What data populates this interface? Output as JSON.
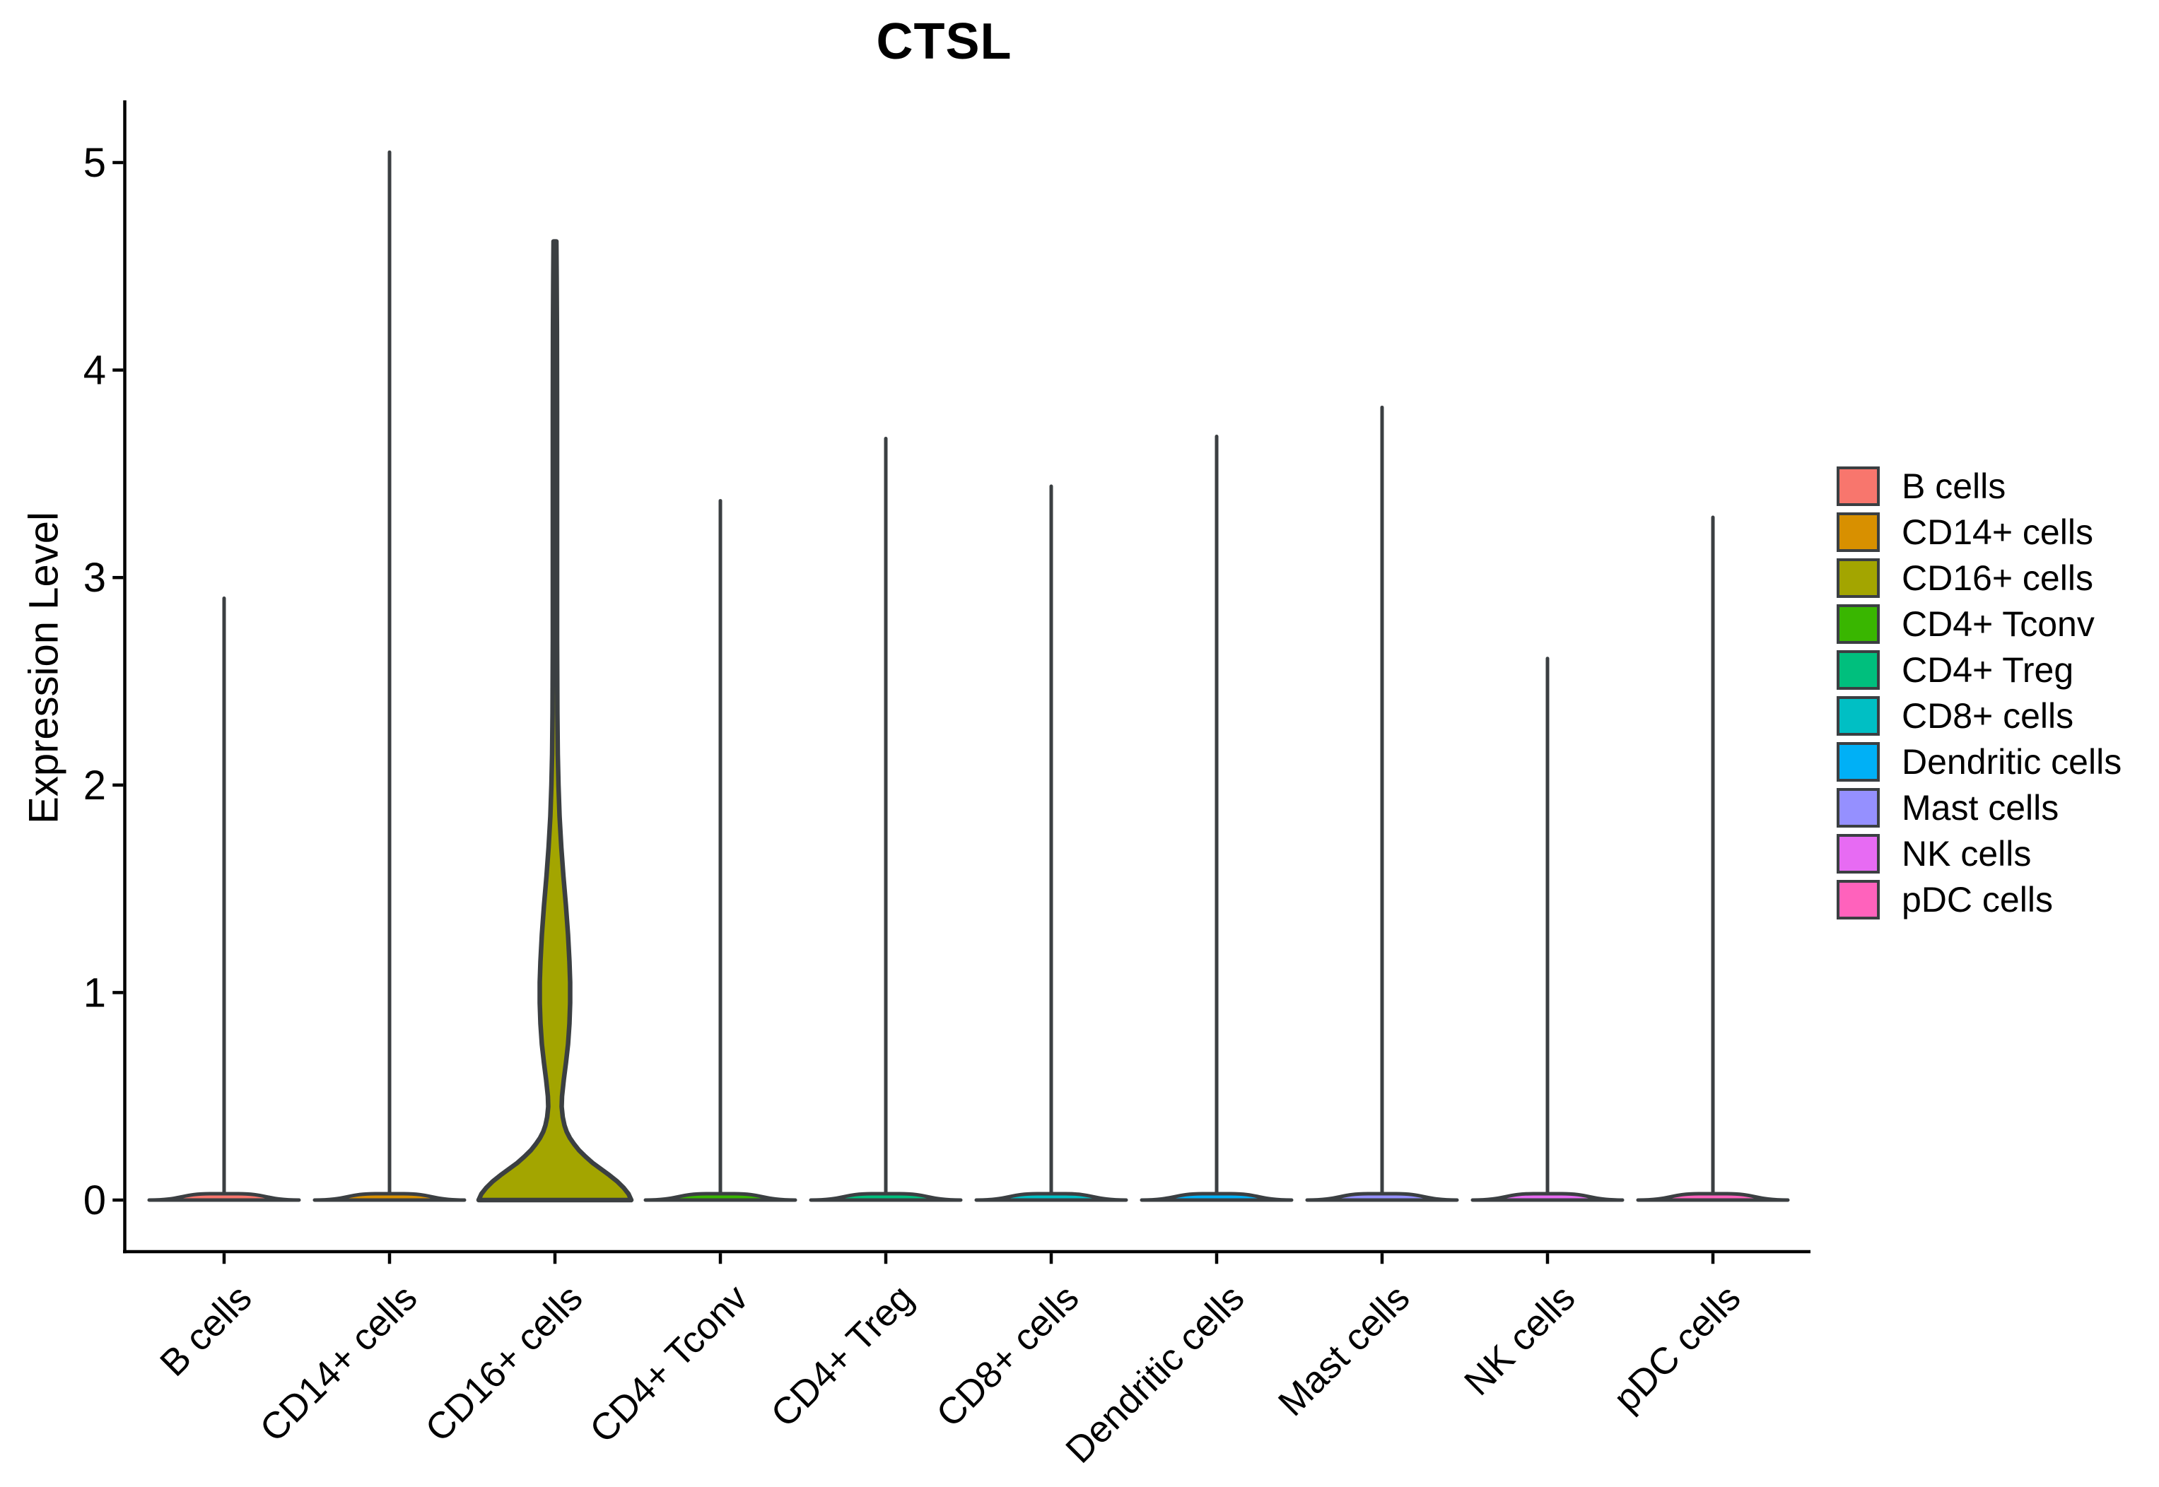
{
  "chart_data": {
    "type": "violin",
    "title": "CTSL",
    "ylabel": "Expression Level",
    "xlabel": "",
    "ylim": [
      0,
      5.3
    ],
    "yticks": [
      0,
      1,
      2,
      3,
      4,
      5
    ],
    "grid": false,
    "legend_position": "right",
    "background_color": "#FFFFFF",
    "axis_color": "#000000",
    "outline_color": "#3B3F42",
    "text_color": "#000000",
    "categories": [
      "B cells",
      "CD14+ cells",
      "CD16+ cells",
      "CD4+ Tconv",
      "CD4+ Treg",
      "CD8+ cells",
      "Dendritic cells",
      "Mast cells",
      "NK cells",
      "pDC cells"
    ],
    "series": [
      {
        "name": "B cells",
        "color": "#F8766D",
        "max": 2.9
      },
      {
        "name": "CD14+ cells",
        "color": "#D89000",
        "max": 5.05
      },
      {
        "name": "CD16+ cells",
        "color": "#A3A500",
        "max": 4.62,
        "profile": [
          [
            0.0,
            108
          ],
          [
            0.03,
            104
          ],
          [
            0.06,
            97
          ],
          [
            0.09,
            88
          ],
          [
            0.12,
            77
          ],
          [
            0.15,
            65
          ],
          [
            0.18,
            53
          ],
          [
            0.21,
            43
          ],
          [
            0.24,
            34
          ],
          [
            0.27,
            27
          ],
          [
            0.3,
            21
          ],
          [
            0.33,
            16.5
          ],
          [
            0.36,
            13.5
          ],
          [
            0.4,
            11
          ],
          [
            0.45,
            9.5
          ],
          [
            0.5,
            10
          ],
          [
            0.58,
            12.5
          ],
          [
            0.66,
            15.5
          ],
          [
            0.75,
            18.5
          ],
          [
            0.85,
            20.5
          ],
          [
            0.95,
            21.5
          ],
          [
            1.05,
            21.5
          ],
          [
            1.15,
            20.5
          ],
          [
            1.28,
            18.5
          ],
          [
            1.42,
            15.5
          ],
          [
            1.56,
            12
          ],
          [
            1.7,
            9
          ],
          [
            1.85,
            6.5
          ],
          [
            2.0,
            5
          ],
          [
            2.15,
            4
          ],
          [
            2.35,
            3.4
          ],
          [
            2.7,
            3
          ],
          [
            3.2,
            3
          ],
          [
            3.8,
            3
          ],
          [
            4.2,
            2.8
          ],
          [
            4.45,
            2.4
          ],
          [
            4.62,
            2
          ]
        ]
      },
      {
        "name": "CD4+ Tconv",
        "color": "#39B600",
        "max": 3.37
      },
      {
        "name": "CD4+ Treg",
        "color": "#00BF7D",
        "max": 3.67
      },
      {
        "name": "CD8+ cells",
        "color": "#00BFC4",
        "max": 3.44
      },
      {
        "name": "Dendritic cells",
        "color": "#00B0F6",
        "max": 3.68
      },
      {
        "name": "Mast cells",
        "color": "#9590FF",
        "max": 3.82
      },
      {
        "name": "NK cells",
        "color": "#E76BF3",
        "max": 2.61
      },
      {
        "name": "pDC cells",
        "color": "#FF62BC",
        "max": 3.29
      }
    ]
  },
  "legend": {
    "items": [
      {
        "label": "B cells",
        "color": "#F8766D"
      },
      {
        "label": "CD14+ cells",
        "color": "#D89000"
      },
      {
        "label": "CD16+ cells",
        "color": "#A3A500"
      },
      {
        "label": "CD4+ Tconv",
        "color": "#39B600"
      },
      {
        "label": "CD4+ Treg",
        "color": "#00BF7D"
      },
      {
        "label": "CD8+ cells",
        "color": "#00BFC4"
      },
      {
        "label": "Dendritic cells",
        "color": "#00B0F6"
      },
      {
        "label": "Mast cells",
        "color": "#9590FF"
      },
      {
        "label": "NK cells",
        "color": "#E76BF3"
      },
      {
        "label": "pDC cells",
        "color": "#FF62BC"
      }
    ]
  }
}
